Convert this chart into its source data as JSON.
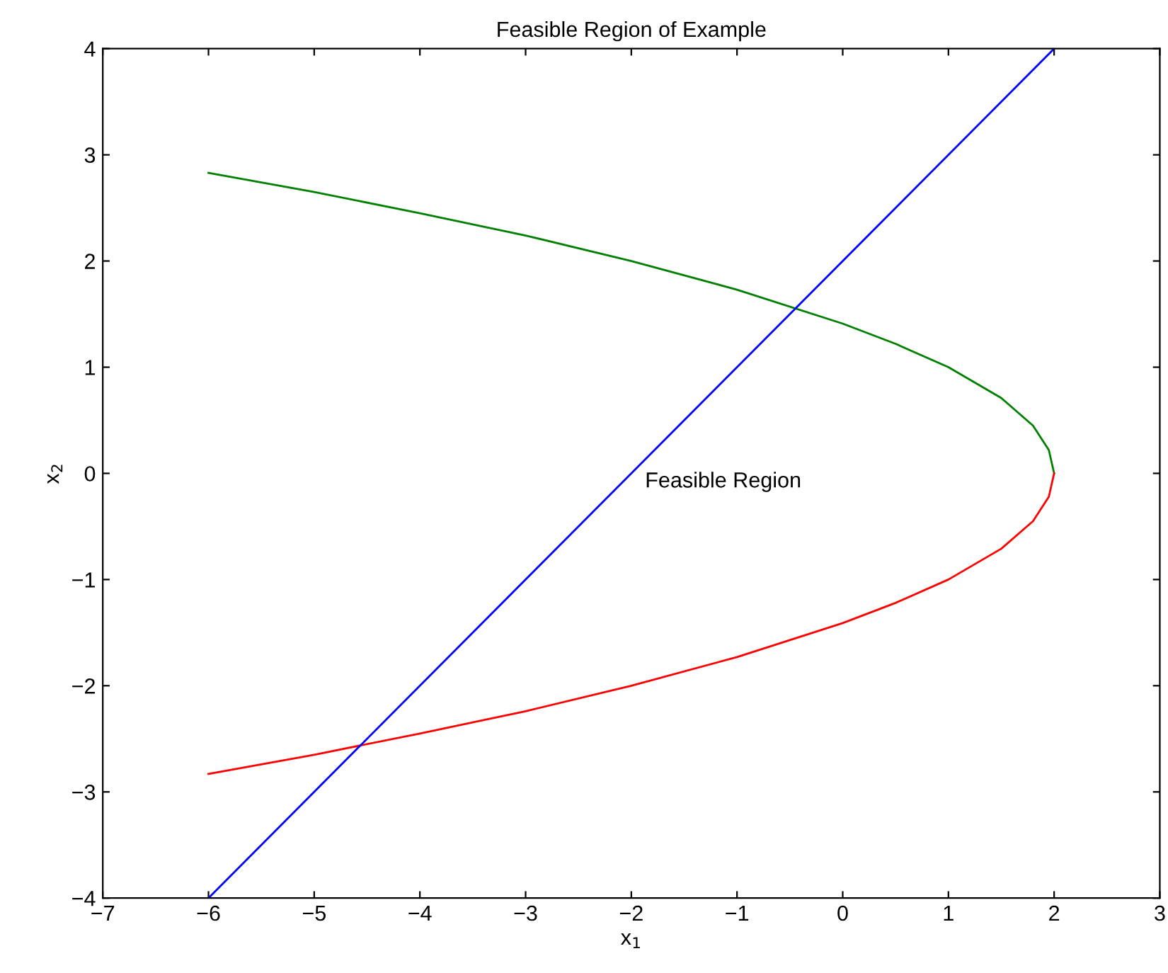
{
  "chart_data": {
    "type": "line",
    "title": "Feasible Region of Example",
    "xlabel": "x$_{1}$",
    "ylabel": "x$_{2}$",
    "series": [
      {
        "color": "#008000",
        "x": [
          -6,
          -5,
          -4,
          -3,
          -2,
          -1,
          0,
          0.5,
          1,
          1.5,
          1.8,
          1.95,
          2
        ],
        "values": [
          2.83,
          2.65,
          2.45,
          2.24,
          2.0,
          1.73,
          1.41,
          1.22,
          1.0,
          0.71,
          0.45,
          0.22,
          0
        ]
      },
      {
        "color": "#ff0000",
        "x": [
          -6,
          -5,
          -4,
          -3,
          -2,
          -1,
          0,
          0.5,
          1,
          1.5,
          1.8,
          1.95,
          2
        ],
        "values": [
          -2.83,
          -2.65,
          -2.45,
          -2.24,
          -2.0,
          -1.73,
          -1.41,
          -1.22,
          -1.0,
          -0.71,
          -0.45,
          -0.22,
          0
        ]
      },
      {
        "color": "#0000ff",
        "x": [
          -6,
          2
        ],
        "values": [
          -4,
          4
        ]
      }
    ],
    "annotations": [
      "Feasible Region"
    ],
    "xlim": [
      -7,
      3
    ],
    "xticks": [
      -7,
      -6,
      -5,
      -4,
      -3,
      -2,
      -1,
      0,
      1,
      2,
      3
    ],
    "ylim": [
      -4,
      4
    ],
    "yticks": [
      -4,
      -3,
      -2,
      -1,
      0,
      1,
      2,
      3,
      4
    ],
    "grid": false,
    "legend": false
  }
}
